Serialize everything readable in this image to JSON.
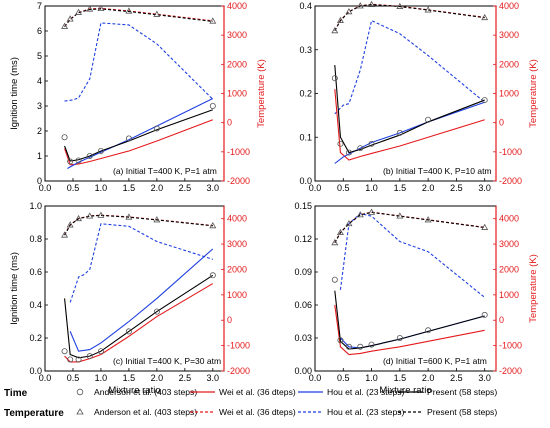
{
  "chart_data": [
    {
      "type": "line",
      "annotation": "(a) Initial T=400 K, P=1 atm",
      "ylabel": "Ignition time (ms)",
      "y2label": "Temperature (K)",
      "xlabel": "",
      "xlim": [
        0,
        3.2
      ],
      "ylim": [
        0,
        7
      ],
      "y2lim": [
        -2000,
        4000
      ],
      "xticks": [
        "0.0",
        "0.5",
        "1.0",
        "1.5",
        "2.0",
        "2.5",
        "3.0"
      ],
      "yticks": [
        "0",
        "1",
        "2",
        "3",
        "4",
        "5",
        "6",
        "7"
      ],
      "y2ticks": [
        "-2000",
        "-1000",
        "0",
        "1000",
        "2000",
        "3000",
        "4000"
      ],
      "time": {
        "anderson": {
          "x": [
            0.35,
            0.45,
            0.6,
            0.8,
            1.0,
            1.5,
            2.0,
            3.0
          ],
          "y": [
            1.75,
            0.78,
            0.82,
            1.0,
            1.2,
            1.7,
            2.1,
            3.0
          ]
        },
        "wei": {
          "x": [
            0.35,
            0.45,
            0.6,
            0.8,
            1.0,
            1.5,
            2.0,
            3.0
          ],
          "y": [
            1.3,
            0.65,
            0.68,
            0.78,
            0.9,
            1.2,
            1.6,
            2.45
          ]
        },
        "hou": {
          "x": [
            0.4,
            0.6,
            0.8,
            1.0,
            1.5,
            2.0,
            3.0
          ],
          "y": [
            0.5,
            0.75,
            0.95,
            1.15,
            1.65,
            2.2,
            3.3
          ]
        },
        "present": {
          "x": [
            0.35,
            0.45,
            0.6,
            0.8,
            1.0,
            1.5,
            2.0,
            3.0
          ],
          "y": [
            1.4,
            0.8,
            0.85,
            1.0,
            1.2,
            1.6,
            2.05,
            2.85
          ]
        }
      },
      "temperature": {
        "anderson": {
          "x": [
            0.35,
            0.45,
            0.6,
            0.8,
            1.0,
            1.5,
            2.0,
            3.0
          ],
          "y": [
            3300,
            3550,
            3780,
            3890,
            3910,
            3820,
            3710,
            3480
          ]
        },
        "wei": {
          "x": [
            0.35,
            0.45,
            0.6,
            0.8,
            1.0,
            1.5,
            2.0,
            3.0
          ],
          "y": [
            3300,
            3550,
            3780,
            3900,
            3920,
            3830,
            3720,
            3490
          ]
        },
        "hou": {
          "x": [
            0.35,
            0.5,
            0.6,
            0.8,
            1.0,
            1.5,
            2.0,
            3.0
          ],
          "y": [
            740,
            780,
            850,
            1500,
            3420,
            3350,
            2700,
            800
          ]
        },
        "present": {
          "x": [
            0.35,
            0.45,
            0.6,
            0.8,
            1.0,
            1.5,
            2.0,
            3.0
          ],
          "y": [
            3290,
            3540,
            3770,
            3880,
            3900,
            3810,
            3700,
            3470
          ]
        }
      }
    },
    {
      "type": "line",
      "annotation": "(b) Initial T=400 K, P=10 atm",
      "ylabel": "",
      "y2label": "Temperature (K)",
      "xlabel": "",
      "xlim": [
        0,
        3.2
      ],
      "ylim": [
        0,
        0.4
      ],
      "y2lim": [
        -2000,
        4000
      ],
      "xticks": [
        "0.0",
        "0.5",
        "1.0",
        "1.5",
        "2.0",
        "2.5",
        "3.0"
      ],
      "yticks": [
        "0.0",
        "0.1",
        "0.2",
        "0.3",
        "0.4"
      ],
      "y2ticks": [
        "-2000",
        "-1000",
        "0",
        "1000",
        "2000",
        "3000",
        "4000"
      ],
      "time": {
        "anderson": {
          "x": [
            0.35,
            0.45,
            0.6,
            0.8,
            1.0,
            1.5,
            2.0,
            3.0
          ],
          "y": [
            0.235,
            0.085,
            0.065,
            0.075,
            0.085,
            0.11,
            0.14,
            0.185
          ]
        },
        "wei": {
          "x": [
            0.35,
            0.45,
            0.6,
            0.8,
            1.0,
            1.5,
            2.0,
            3.0
          ],
          "y": [
            0.21,
            0.065,
            0.048,
            0.056,
            0.063,
            0.08,
            0.1,
            0.14
          ]
        },
        "hou": {
          "x": [
            0.35,
            0.5,
            0.8,
            1.0,
            1.5,
            2.0,
            3.0
          ],
          "y": [
            0.04,
            0.055,
            0.075,
            0.088,
            0.11,
            0.135,
            0.18
          ]
        },
        "present": {
          "x": [
            0.35,
            0.45,
            0.6,
            0.8,
            1.0,
            1.5,
            2.0,
            3.0
          ],
          "y": [
            0.265,
            0.1,
            0.065,
            0.072,
            0.082,
            0.105,
            0.135,
            0.185
          ]
        }
      },
      "temperature": {
        "anderson": {
          "x": [
            0.35,
            0.45,
            0.6,
            0.8,
            1.0,
            1.5,
            2.0,
            3.0
          ],
          "y": [
            3150,
            3500,
            3800,
            4000,
            4050,
            3980,
            3860,
            3600
          ]
        },
        "wei": {
          "x": [
            0.35,
            0.45,
            0.6,
            0.8,
            1.0,
            1.5,
            2.0,
            3.0
          ],
          "y": [
            3160,
            3510,
            3810,
            4010,
            4060,
            3990,
            3870,
            3610
          ]
        },
        "hou": {
          "x": [
            0.35,
            0.5,
            0.6,
            0.8,
            1.0,
            1.5,
            2.0,
            3.0
          ],
          "y": [
            300,
            600,
            650,
            1800,
            3500,
            3050,
            2300,
            700
          ]
        },
        "present": {
          "x": [
            0.35,
            0.45,
            0.6,
            0.8,
            1.0,
            1.5,
            2.0,
            3.0
          ],
          "y": [
            3150,
            3500,
            3800,
            4000,
            4050,
            3980,
            3860,
            3600
          ]
        }
      }
    },
    {
      "type": "line",
      "annotation": "(c) Initial T=400 K, P=30 atm",
      "ylabel": "Ignition time (ms)",
      "y2label": "",
      "xlabel": "Mixture ratio",
      "xlim": [
        0,
        3.2
      ],
      "ylim": [
        0,
        1
      ],
      "y2lim": [
        -2000,
        4500
      ],
      "xticks": [
        "0.0",
        "0.5",
        "1.0",
        "1.5",
        "2.0",
        "2.5",
        "3.0"
      ],
      "yticks": [
        "0.0",
        "0.2",
        "0.4",
        "0.6",
        "0.8",
        "1.0"
      ],
      "y2ticks": [
        "-2000",
        "-1000",
        "0",
        "1000",
        "2000",
        "3000",
        "4000"
      ],
      "time": {
        "anderson": {
          "x": [
            0.35,
            0.45,
            0.6,
            0.8,
            1.0,
            1.5,
            2.0,
            3.0
          ],
          "y": [
            0.12,
            0.07,
            0.07,
            0.09,
            0.12,
            0.24,
            0.36,
            0.58
          ]
        },
        "wei": {
          "x": [
            0.35,
            0.45,
            0.6,
            0.8,
            1.0,
            1.5,
            2.0,
            3.0
          ],
          "y": [
            0.09,
            0.055,
            0.055,
            0.075,
            0.1,
            0.21,
            0.33,
            0.53
          ]
        },
        "hou": {
          "x": [
            0.45,
            0.6,
            0.8,
            1.0,
            1.5,
            2.0,
            3.0
          ],
          "y": [
            0.24,
            0.12,
            0.13,
            0.17,
            0.3,
            0.44,
            0.74
          ]
        },
        "present": {
          "x": [
            0.35,
            0.45,
            0.6,
            0.8,
            1.0,
            1.5,
            2.0,
            3.0
          ],
          "y": [
            0.44,
            0.1,
            0.08,
            0.09,
            0.12,
            0.24,
            0.36,
            0.58
          ]
        }
      },
      "temperature": {
        "anderson": {
          "x": [
            0.35,
            0.45,
            0.6,
            0.8,
            1.0,
            1.5,
            2.0,
            3.0
          ],
          "y": [
            3350,
            3750,
            4000,
            4100,
            4130,
            4060,
            3950,
            3720
          ]
        },
        "wei": {
          "x": [
            0.35,
            0.45,
            0.6,
            0.8,
            1.0,
            1.5,
            2.0,
            3.0
          ],
          "y": [
            3360,
            3760,
            4010,
            4110,
            4140,
            4070,
            3960,
            3730
          ]
        },
        "hou": {
          "x": [
            0.45,
            0.6,
            0.7,
            0.8,
            1.0,
            1.5,
            2.0,
            3.0
          ],
          "y": [
            700,
            1700,
            1800,
            2000,
            3800,
            3700,
            3100,
            2400
          ]
        },
        "present": {
          "x": [
            0.35,
            0.45,
            0.6,
            0.8,
            1.0,
            1.5,
            2.0,
            3.0
          ],
          "y": [
            3350,
            3750,
            4000,
            4100,
            4130,
            4060,
            3950,
            3720
          ]
        }
      }
    },
    {
      "type": "line",
      "annotation": "(d) Initial T=600 K, P=1 atm",
      "ylabel": "",
      "y2label": "Temperature (K)",
      "xlabel": "Mixture ratio",
      "xlim": [
        0,
        3.2
      ],
      "ylim": [
        0,
        0.15
      ],
      "y2lim": [
        -2000,
        4500
      ],
      "xticks": [
        "0.0",
        "0.5",
        "1.0",
        "1.5",
        "2.0",
        "2.5",
        "3.0"
      ],
      "yticks": [
        "0.00",
        "0.03",
        "0.06",
        "0.09",
        "0.12",
        "0.15"
      ],
      "y2ticks": [
        "-2000",
        "-1000",
        "0",
        "1000",
        "2000",
        "3000",
        "4000"
      ],
      "time": {
        "anderson": {
          "x": [
            0.35,
            0.45,
            0.6,
            0.8,
            1.0,
            1.5,
            2.0,
            3.0
          ],
          "y": [
            0.083,
            0.028,
            0.022,
            0.022,
            0.024,
            0.03,
            0.037,
            0.051
          ]
        },
        "wei": {
          "x": [
            0.35,
            0.45,
            0.6,
            0.8,
            1.0,
            1.5,
            2.0,
            3.0
          ],
          "y": [
            0.06,
            0.022,
            0.015,
            0.016,
            0.018,
            0.022,
            0.027,
            0.037
          ]
        },
        "hou": {
          "x": [
            0.45,
            0.6,
            0.8,
            1.0,
            1.5,
            2.0,
            3.0
          ],
          "y": [
            0.03,
            0.022,
            0.021,
            0.023,
            0.029,
            0.036,
            0.05
          ]
        },
        "present": {
          "x": [
            0.35,
            0.45,
            0.6,
            0.8,
            1.0,
            1.5,
            2.0,
            3.0
          ],
          "y": [
            0.073,
            0.027,
            0.02,
            0.021,
            0.023,
            0.029,
            0.036,
            0.05
          ]
        }
      },
      "temperature": {
        "anderson": {
          "x": [
            0.35,
            0.45,
            0.6,
            0.8,
            1.0,
            1.5,
            2.0,
            3.0
          ],
          "y": [
            3050,
            3450,
            3800,
            4150,
            4250,
            4100,
            3950,
            3650
          ]
        },
        "wei": {
          "x": [
            0.35,
            0.45,
            0.6,
            0.8,
            1.0,
            1.5,
            2.0,
            3.0
          ],
          "y": [
            3060,
            3460,
            3810,
            4160,
            4260,
            4110,
            3960,
            3660
          ]
        },
        "hou": {
          "x": [
            0.45,
            0.6,
            0.8,
            1.0,
            1.5,
            2.0,
            3.0
          ],
          "y": [
            1200,
            3800,
            4200,
            4100,
            3100,
            2700,
            900
          ]
        },
        "present": {
          "x": [
            0.35,
            0.45,
            0.6,
            0.8,
            1.0,
            1.5,
            2.0,
            3.0
          ],
          "y": [
            3050,
            3450,
            3800,
            4150,
            4250,
            4100,
            3950,
            3650
          ]
        }
      }
    }
  ],
  "legend": {
    "time_title": "Time",
    "temperature_title": "Temperature",
    "entries": [
      {
        "key": "anderson",
        "label": "Anderson et al. (403 steps)"
      },
      {
        "key": "wei",
        "label": "Wei et al. (36 dteps)"
      },
      {
        "key": "hou",
        "label": "Hou et al. (23 steps)"
      },
      {
        "key": "present",
        "label": "Present (58 steps)"
      }
    ]
  },
  "colors": {
    "wei": "#e41a1c",
    "hou": "#1f3fe0",
    "present": "#000000",
    "anderson": "#555555",
    "right_axis": "#e41a1c"
  }
}
